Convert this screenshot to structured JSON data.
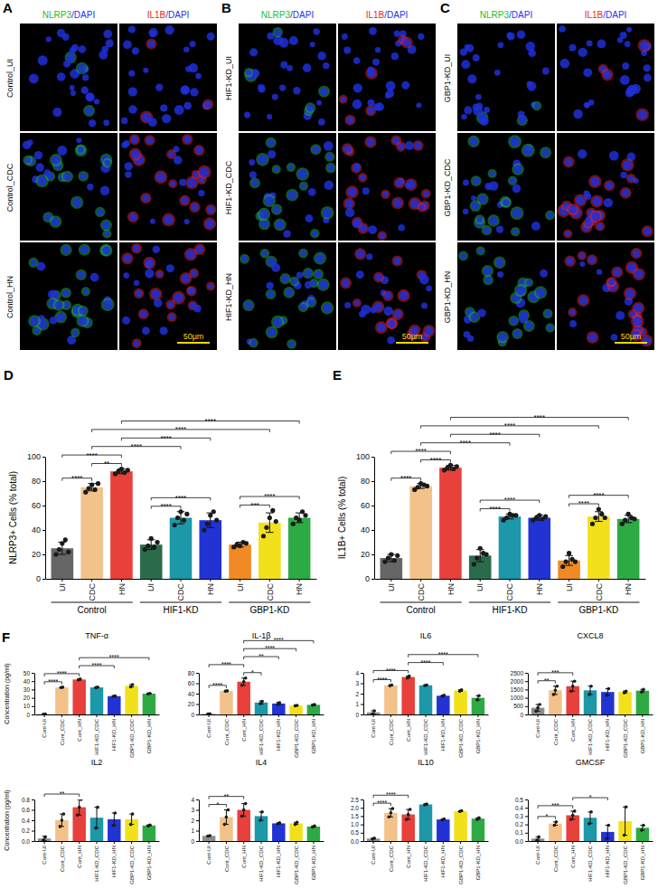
{
  "image_panels": [
    {
      "letter": "A",
      "columns": [
        [
          {
            "text": "NLRP3",
            "color": "#22bb33"
          },
          {
            "text": "/DAPI",
            "color": "#2233ee"
          }
        ],
        [
          {
            "text": "IL1B",
            "color": "#ee2222"
          },
          {
            "text": "/DAPI",
            "color": "#2233ee"
          }
        ]
      ],
      "rows": [
        "Control_UI",
        "Control_CDC",
        "Control_HN"
      ],
      "scale_bar": "50µm"
    },
    {
      "letter": "B",
      "columns": [
        [
          {
            "text": "NLRP3",
            "color": "#22bb33"
          },
          {
            "text": "/DAPI",
            "color": "#2233ee"
          }
        ],
        [
          {
            "text": "IL1B",
            "color": "#ee2222"
          },
          {
            "text": "/DAPI",
            "color": "#2233ee"
          }
        ]
      ],
      "rows": [
        "HIF1-KD_UI",
        "HIF1-KD_CDC",
        "HIF1-KD_HN"
      ],
      "scale_bar": "50µm"
    },
    {
      "letter": "C",
      "columns": [
        [
          {
            "text": "NLRP3",
            "color": "#22bb33"
          },
          {
            "text": "/DAPI",
            "color": "#2233ee"
          }
        ],
        [
          {
            "text": "IL1B",
            "color": "#ee2222"
          },
          {
            "text": "/DAPI",
            "color": "#2233ee"
          }
        ]
      ],
      "rows": [
        "GBP1-KD_UI",
        "GBP1-KD_CDC",
        "GBP1-KD_HN"
      ],
      "scale_bar": "50µm"
    }
  ],
  "chart_data": [
    {
      "panel": "D",
      "type": "bar",
      "categories": [
        "UI",
        "CDC",
        "HN",
        "UI",
        "CDC",
        "HN",
        "UI",
        "CDC",
        "HN"
      ],
      "groups": [
        {
          "label": "Control",
          "from": 0,
          "to": 2
        },
        {
          "label": "HIF1-KD",
          "from": 3,
          "to": 5
        },
        {
          "label": "GBP1-KD",
          "from": 6,
          "to": 8
        }
      ],
      "values": [
        25,
        75,
        88,
        28,
        50,
        48,
        28,
        46,
        50
      ],
      "errors": [
        5,
        3,
        2,
        4,
        5,
        6,
        2,
        8,
        4
      ],
      "points": [
        [
          20,
          24,
          29,
          32,
          22
        ],
        [
          71,
          74,
          77,
          73,
          78
        ],
        [
          86,
          88,
          90,
          87,
          89
        ],
        [
          24,
          27,
          33,
          26,
          30
        ],
        [
          44,
          50,
          55,
          48,
          53
        ],
        [
          40,
          45,
          52,
          55,
          48
        ],
        [
          26,
          28,
          27,
          30,
          29
        ],
        [
          35,
          42,
          50,
          56,
          47
        ],
        [
          45,
          50,
          48,
          55,
          52
        ]
      ],
      "colors": [
        "#666666",
        "#f2c28a",
        "#e8403a",
        "#2b6b4a",
        "#1c98a8",
        "#2233d4",
        "#f08a24",
        "#f2e11a",
        "#2eaa44"
      ],
      "y_label": "NLRP3+ Cells (% total)",
      "ylim": [
        0,
        100
      ],
      "yticks": [
        0,
        20,
        40,
        60,
        80,
        100
      ],
      "significance": [
        {
          "from": 0,
          "to": 1,
          "label": "****"
        },
        {
          "from": 1,
          "to": 2,
          "label": "**"
        },
        {
          "from": 0,
          "to": 2,
          "label": "****"
        },
        {
          "from": 3,
          "to": 4,
          "label": "****"
        },
        {
          "from": 3,
          "to": 5,
          "label": "****"
        },
        {
          "from": 6,
          "to": 7,
          "label": "***"
        },
        {
          "from": 6,
          "to": 8,
          "label": "****"
        },
        {
          "from": 1,
          "to": 4,
          "label": "****"
        },
        {
          "from": 2,
          "to": 5,
          "label": "****"
        },
        {
          "from": 1,
          "to": 7,
          "label": "****"
        },
        {
          "from": 2,
          "to": 8,
          "label": "****"
        }
      ]
    },
    {
      "panel": "E",
      "type": "bar",
      "categories": [
        "UI",
        "CDC",
        "HN",
        "UI",
        "CDC",
        "HN",
        "UI",
        "CDC",
        "HN"
      ],
      "groups": [
        {
          "label": "Control",
          "from": 0,
          "to": 2
        },
        {
          "label": "HIF1-KD",
          "from": 3,
          "to": 5
        },
        {
          "label": "GBP1-KD",
          "from": 6,
          "to": 8
        }
      ],
      "values": [
        17,
        76,
        91,
        19,
        51,
        50,
        15,
        51,
        49
      ],
      "errors": [
        3,
        2,
        2,
        5,
        2,
        2,
        4,
        4,
        3
      ],
      "points": [
        [
          14,
          17,
          20,
          15,
          19
        ],
        [
          73,
          75,
          78,
          77,
          76
        ],
        [
          89,
          91,
          93,
          90,
          92
        ],
        [
          12,
          17,
          25,
          21,
          20
        ],
        [
          48,
          50,
          53,
          52,
          52
        ],
        [
          48,
          50,
          52,
          49,
          51
        ],
        [
          10,
          14,
          21,
          16,
          14
        ],
        [
          45,
          50,
          57,
          53,
          50
        ],
        [
          45,
          48,
          53,
          50,
          49
        ]
      ],
      "colors": [
        "#666666",
        "#f2c28a",
        "#e8403a",
        "#2b6b4a",
        "#1c98a8",
        "#2233d4",
        "#f08a24",
        "#f2e11a",
        "#2eaa44"
      ],
      "y_label": "IL1B+ Cells (% total)",
      "ylim": [
        0,
        100
      ],
      "yticks": [
        0,
        20,
        40,
        60,
        80,
        100
      ],
      "significance": [
        {
          "from": 0,
          "to": 1,
          "label": "****"
        },
        {
          "from": 1,
          "to": 2,
          "label": "****"
        },
        {
          "from": 0,
          "to": 2,
          "label": "****"
        },
        {
          "from": 3,
          "to": 4,
          "label": "****"
        },
        {
          "from": 3,
          "to": 5,
          "label": "****"
        },
        {
          "from": 6,
          "to": 7,
          "label": "****"
        },
        {
          "from": 6,
          "to": 8,
          "label": "****"
        },
        {
          "from": 1,
          "to": 4,
          "label": "****"
        },
        {
          "from": 2,
          "to": 5,
          "label": "****"
        },
        {
          "from": 1,
          "to": 7,
          "label": "****"
        },
        {
          "from": 2,
          "to": 8,
          "label": "****"
        }
      ]
    },
    {
      "panel": "F",
      "type": "bar",
      "title": "TNF-α",
      "y_label": "Concentration (pg/ml)",
      "categories": [
        "Cont-UI",
        "Cont_CDC",
        "Cont_HN",
        "HIF1-KD_CDC",
        "HIF1-KD_HN",
        "GBP1-KD_CDC",
        "GBP1-KD_HN"
      ],
      "values": [
        0.3,
        32.5,
        42,
        32.5,
        22,
        34.5,
        25
      ],
      "errors": [
        0.2,
        0.3,
        0.5,
        0.5,
        0.3,
        1.5,
        0.5
      ],
      "points": [
        [
          0.1,
          0.5
        ],
        [
          32.3,
          32.7
        ],
        [
          41.5,
          42.5
        ],
        [
          32.2,
          32.8
        ],
        [
          21.8,
          22.2
        ],
        [
          33.2,
          35.8
        ],
        [
          24.7,
          25.3
        ]
      ],
      "colors": [
        "#8c8c8c",
        "#f2c28a",
        "#e8403a",
        "#1c98a8",
        "#2233d4",
        "#f2e11a",
        "#2eaa44"
      ],
      "ylim": [
        0,
        50
      ],
      "yticks": [
        0,
        10,
        20,
        30,
        40,
        50
      ],
      "significance": [
        {
          "from": 0,
          "to": 1,
          "label": "****"
        },
        {
          "from": 0,
          "to": 2,
          "label": "****"
        },
        {
          "from": 2,
          "to": 4,
          "label": "****"
        },
        {
          "from": 2,
          "to": 6,
          "label": "****"
        }
      ]
    },
    {
      "type": "bar",
      "title": "IL-1β",
      "categories": [
        "Cont-UI",
        "Cont_CDC",
        "Cont_HN",
        "HIF1-KD_CDC",
        "HIF1-KD_HN",
        "GBP1-KD_CDC",
        "GBP1-KD_HN"
      ],
      "values": [
        1,
        45,
        63,
        23,
        21,
        17,
        18.5
      ],
      "errors": [
        0.5,
        0.5,
        7,
        3,
        2.5,
        0.5,
        0.8
      ],
      "points": [
        [
          0.6,
          1.4
        ],
        [
          44.6,
          45.4
        ],
        [
          56,
          63,
          70
        ],
        [
          21,
          25
        ],
        [
          19.5,
          22.5
        ],
        [
          16.7,
          17.3
        ],
        [
          18,
          19
        ]
      ],
      "colors": [
        "#8c8c8c",
        "#f2c28a",
        "#e8403a",
        "#1c98a8",
        "#2233d4",
        "#f2e11a",
        "#2eaa44"
      ],
      "ylim": [
        0,
        80
      ],
      "yticks": [
        0,
        20,
        40,
        60,
        80
      ],
      "significance": [
        {
          "from": 0,
          "to": 1,
          "label": "****"
        },
        {
          "from": 0,
          "to": 2,
          "label": "****"
        },
        {
          "from": 2,
          "to": 3,
          "label": "*"
        },
        {
          "from": 2,
          "to": 4,
          "label": "**"
        },
        {
          "from": 2,
          "to": 5,
          "label": "****"
        },
        {
          "from": 2,
          "to": 6,
          "label": "****"
        }
      ]
    },
    {
      "type": "bar",
      "title": "IL6",
      "categories": [
        "Cont-UI",
        "Cont_CDC",
        "Cont_HN",
        "HIF1-KD_CDC",
        "HIF1-KD_HN",
        "GBP1-KD_CDC",
        "GBP1-KD_HN"
      ],
      "values": [
        0.2,
        2.8,
        3.6,
        2.8,
        1.8,
        2.3,
        1.6
      ],
      "errors": [
        0.15,
        0.03,
        0.1,
        0.02,
        0.05,
        0.08,
        0.2
      ],
      "points": [
        [
          0.05,
          0.35
        ],
        [
          2.77,
          2.83
        ],
        [
          3.5,
          3.7
        ],
        [
          2.78,
          2.82
        ],
        [
          1.75,
          1.85
        ],
        [
          2.24,
          2.36
        ],
        [
          1.4,
          1.8
        ]
      ],
      "colors": [
        "#8c8c8c",
        "#f2c28a",
        "#e8403a",
        "#1c98a8",
        "#2233d4",
        "#f2e11a",
        "#2eaa44"
      ],
      "ylim": [
        0,
        4
      ],
      "yticks": [
        0,
        1,
        2,
        3,
        4
      ],
      "significance": [
        {
          "from": 0,
          "to": 1,
          "label": "****"
        },
        {
          "from": 0,
          "to": 2,
          "label": "****"
        },
        {
          "from": 2,
          "to": 4,
          "label": "****"
        },
        {
          "from": 2,
          "to": 6,
          "label": "****"
        }
      ]
    },
    {
      "type": "bar",
      "title": "CXCL8",
      "categories": [
        "Cont-UI",
        "Cont_CDC",
        "Cont_HN",
        "HIF1-KD_CDC",
        "HIF1-KD_HN",
        "GBP1-KD_CDC",
        "GBP1-KD_HN"
      ],
      "values": [
        400,
        1450,
        1700,
        1450,
        1350,
        1350,
        1430
      ],
      "errors": [
        200,
        250,
        300,
        250,
        200,
        60,
        80
      ],
      "points": [
        [
          200,
          400,
          600
        ],
        [
          1200,
          1450,
          1700
        ],
        [
          1400,
          1700,
          2000
        ],
        [
          1200,
          1700
        ],
        [
          1150,
          1550
        ],
        [
          1300,
          1400
        ],
        [
          1350,
          1500
        ]
      ],
      "colors": [
        "#8c8c8c",
        "#f2c28a",
        "#e8403a",
        "#1c98a8",
        "#2233d4",
        "#f2e11a",
        "#2eaa44"
      ],
      "ylim": [
        0,
        2500
      ],
      "yticks": [
        0,
        500,
        1000,
        1500,
        2000,
        2500
      ],
      "significance": [
        {
          "from": 0,
          "to": 1,
          "label": "**"
        },
        {
          "from": 0,
          "to": 2,
          "label": "***"
        }
      ]
    },
    {
      "type": "bar",
      "title": "IL2",
      "y_label": "Concentration (pg/ml)",
      "categories": [
        "Cont-UI",
        "Cont_CDC",
        "Cont_HN",
        "HIF1-KD_CDC",
        "HIF1-KD_HN",
        "GBP1-KD_CDC",
        "GBP1-KD_HN"
      ],
      "values": [
        0.05,
        0.4,
        0.65,
        0.45,
        0.42,
        0.42,
        0.3
      ],
      "errors": [
        0.04,
        0.12,
        0.15,
        0.2,
        0.12,
        0.1,
        0.01
      ],
      "points": [
        [
          0.02,
          0.08
        ],
        [
          0.28,
          0.4,
          0.52
        ],
        [
          0.5,
          0.65,
          0.8
        ],
        [
          0.25,
          0.65
        ],
        [
          0.3,
          0.54
        ],
        [
          0.32,
          0.52
        ],
        [
          0.29,
          0.31
        ]
      ],
      "colors": [
        "#8c8c8c",
        "#f2c28a",
        "#e8403a",
        "#1c98a8",
        "#2233d4",
        "#f2e11a",
        "#2eaa44"
      ],
      "ylim": [
        0,
        0.8
      ],
      "yticks": [
        {
          "value": 0,
          "label": "0.0"
        },
        0.2,
        0.4,
        0.6,
        0.8
      ],
      "significance": [
        {
          "from": 0,
          "to": 2,
          "label": "**"
        }
      ]
    },
    {
      "type": "bar",
      "title": "IL4",
      "categories": [
        "Cont-UI",
        "Cont_CDC",
        "Cont_HN",
        "HIF1-KD_CDC",
        "HIF1-KD_HN",
        "GBP1-KD_CDC",
        "GBP1-KD_HN"
      ],
      "values": [
        0.5,
        2.3,
        3.0,
        2.4,
        1.7,
        1.7,
        1.4
      ],
      "errors": [
        0.02,
        0.7,
        0.6,
        0.4,
        0.05,
        0.1,
        0.05
      ],
      "points": [
        [
          0.48,
          0.52
        ],
        [
          1.6,
          2.3,
          3.0
        ],
        [
          2.4,
          3.0,
          3.6
        ],
        [
          2.0,
          2.8
        ],
        [
          1.65,
          1.75
        ],
        [
          1.6,
          1.8
        ],
        [
          1.35,
          1.45
        ]
      ],
      "colors": [
        "#8c8c8c",
        "#f2c28a",
        "#e8403a",
        "#1c98a8",
        "#2233d4",
        "#f2e11a",
        "#2eaa44"
      ],
      "ylim": [
        0,
        4
      ],
      "yticks": [
        0,
        1,
        2,
        3,
        4
      ],
      "significance": [
        {
          "from": 0,
          "to": 1,
          "label": "*"
        },
        {
          "from": 0,
          "to": 2,
          "label": "**"
        }
      ]
    },
    {
      "type": "bar",
      "title": "IL10",
      "categories": [
        "Cont-UI",
        "Cont_CDC",
        "Cont_HN",
        "HIF1-KD_CDC",
        "HIF1-KD_HN",
        "GBP1-KD_CDC",
        "GBP1-KD_HN"
      ],
      "values": [
        0.15,
        1.7,
        1.6,
        2.2,
        1.3,
        1.8,
        1.35
      ],
      "errors": [
        0.03,
        0.25,
        0.3,
        0.02,
        0.03,
        0.02,
        0.05
      ],
      "points": [
        [
          0.12,
          0.18
        ],
        [
          1.45,
          1.7,
          1.95
        ],
        [
          1.3,
          1.6,
          1.9
        ],
        [
          2.18,
          2.22
        ],
        [
          1.27,
          1.33
        ],
        [
          1.78,
          1.82
        ],
        [
          1.3,
          1.4
        ]
      ],
      "colors": [
        "#8c8c8c",
        "#f2c28a",
        "#e8403a",
        "#1c98a8",
        "#2233d4",
        "#f2e11a",
        "#2eaa44"
      ],
      "ylim": [
        0,
        2.5
      ],
      "yticks": [
        {
          "value": 0,
          "label": "0.0"
        },
        0.5,
        {
          "value": 1,
          "label": "1.0"
        },
        1.5,
        {
          "value": 2,
          "label": "2.0"
        },
        2.5
      ],
      "significance": [
        {
          "from": 0,
          "to": 1,
          "label": "****"
        },
        {
          "from": 0,
          "to": 2,
          "label": "****"
        }
      ]
    },
    {
      "type": "bar",
      "title": "GMCSF",
      "categories": [
        "Cont-UI",
        "Cont_CDC",
        "Cont_HN",
        "HIF1-KD_CDC",
        "HIF1-KD_HN",
        "GBP1-KD_CDC",
        "GBP1-KD_HN"
      ],
      "values": [
        0.03,
        0.21,
        0.31,
        0.28,
        0.11,
        0.24,
        0.16
      ],
      "errors": [
        0.02,
        0.02,
        0.05,
        0.07,
        0.08,
        0.17,
        0.03
      ],
      "points": [
        [
          0.01,
          0.05
        ],
        [
          0.19,
          0.23
        ],
        [
          0.26,
          0.31,
          0.36
        ],
        [
          0.21,
          0.35
        ],
        [
          0.03,
          0.19
        ],
        [
          0.07,
          0.41
        ],
        [
          0.13,
          0.19
        ]
      ],
      "colors": [
        "#8c8c8c",
        "#f2c28a",
        "#e8403a",
        "#1c98a8",
        "#2233d4",
        "#f2e11a",
        "#2eaa44"
      ],
      "ylim": [
        0,
        0.5
      ],
      "yticks": [
        {
          "value": 0,
          "label": "0.0"
        },
        0.1,
        0.2,
        0.3,
        0.4,
        0.5
      ],
      "significance": [
        {
          "from": 0,
          "to": 1,
          "label": "*"
        },
        {
          "from": 0,
          "to": 2,
          "label": "***"
        },
        {
          "from": 2,
          "to": 4,
          "label": "*"
        }
      ]
    }
  ]
}
